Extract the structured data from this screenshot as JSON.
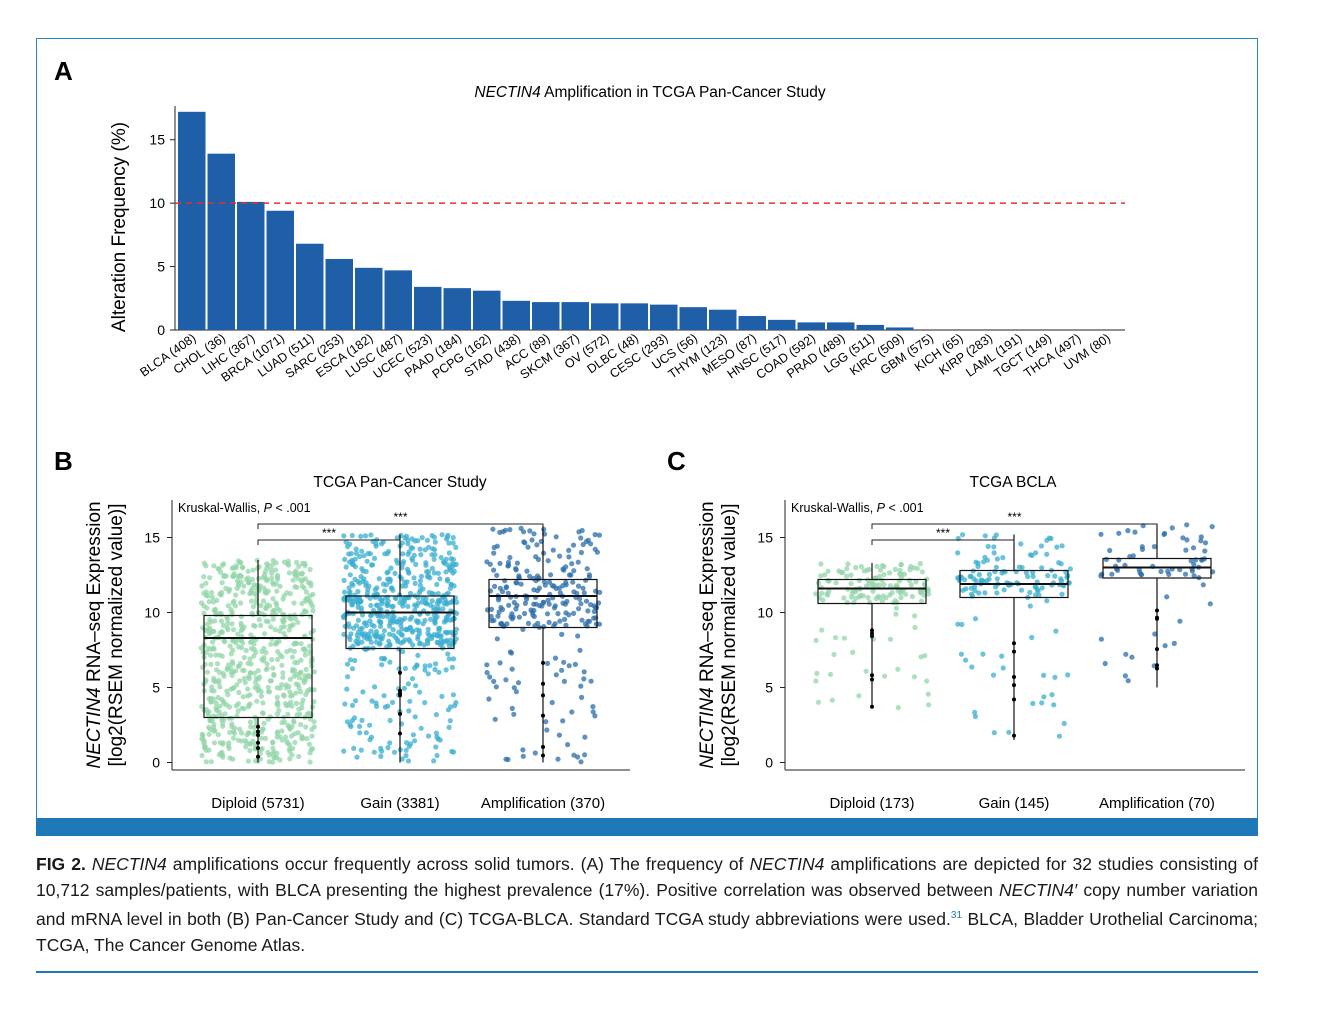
{
  "chart_data": [
    {
      "panel": "A",
      "type": "bar",
      "title_italic": "NECTIN4",
      "title_rest": " Amplification in TCGA Pan-Cancer Study",
      "ylabel": "Alteration Frequency (%)",
      "ylim": [
        0,
        17.5
      ],
      "yticks": [
        0,
        5,
        10,
        15
      ],
      "reference_line": 10,
      "bar_color": "#1f5fa8",
      "reference_color": "#e03030",
      "categories": [
        "BLCA (408)",
        "CHOL (36)",
        "LIHC (367)",
        "BRCA (1071)",
        "LUAD (511)",
        "SARC (253)",
        "ESCA (182)",
        "LUSC (487)",
        "UCEC (523)",
        "PAAD (184)",
        "PCPG (162)",
        "STAD (438)",
        "ACC (89)",
        "SKCM (367)",
        "OV (572)",
        "DLBC (48)",
        "CESC (293)",
        "UCS (56)",
        "THYM (123)",
        "MESO (87)",
        "HNSC (517)",
        "COAD (592)",
        "PRAD (489)",
        "LGG (511)",
        "KIRC (509)",
        "GBM (575)",
        "KICH (65)",
        "KIRP (283)",
        "LAML (191)",
        "TGCT (149)",
        "THCA (497)",
        "UVM (80)"
      ],
      "values": [
        17.2,
        13.9,
        10.1,
        9.4,
        6.8,
        5.6,
        4.9,
        4.7,
        3.4,
        3.3,
        3.1,
        2.3,
        2.2,
        2.2,
        2.1,
        2.1,
        2.0,
        1.8,
        1.6,
        1.1,
        0.8,
        0.6,
        0.6,
        0.4,
        0.2,
        0,
        0,
        0,
        0,
        0,
        0,
        0
      ]
    },
    {
      "panel": "B",
      "type": "box",
      "title": "TCGA Pan-Cancer Study",
      "ylabel_italic": "NECTIN4",
      "ylabel_line1_rest": " RNA–seq Expression",
      "ylabel_line2": "[log2(RSEM normalized value)]",
      "ylim": [
        -0.5,
        17.5
      ],
      "yticks": [
        0,
        5,
        10,
        15
      ],
      "stat_prefix": "Kruskal-Wallis, ",
      "stat_p": "P",
      "stat_value": " < .001",
      "brackets": [
        {
          "from": 0,
          "to": 1,
          "label": "***"
        },
        {
          "from": 0,
          "to": 2,
          "label": "***"
        }
      ],
      "categories": [
        "Diploid (5731)",
        "Gain (3381)",
        "Amplification (370)"
      ],
      "colors": [
        "#92d5a8",
        "#3aaed0",
        "#2a6eab"
      ],
      "boxes": [
        {
          "min": 0.0,
          "q1": 3.0,
          "median": 8.3,
          "q3": 9.8,
          "max": 13.5
        },
        {
          "min": 0.0,
          "q1": 7.6,
          "median": 10.0,
          "q3": 11.1,
          "max": 15.2
        },
        {
          "min": 0.0,
          "q1": 9.0,
          "median": 11.1,
          "q3": 12.2,
          "max": 15.8
        }
      ]
    },
    {
      "panel": "C",
      "type": "box",
      "title": "TCGA BCLA",
      "ylabel_italic": "NECTIN4",
      "ylabel_line1_rest": " RNA–seq Expression",
      "ylabel_line2": "[log2(RSEM normalized value)]",
      "ylim": [
        -0.5,
        17.5
      ],
      "yticks": [
        0,
        5,
        10,
        15
      ],
      "stat_prefix": "Kruskal-Wallis, ",
      "stat_p": "P",
      "stat_value": " < .001",
      "brackets": [
        {
          "from": 0,
          "to": 1,
          "label": "***"
        },
        {
          "from": 0,
          "to": 2,
          "label": "***"
        }
      ],
      "categories": [
        "Diploid (173)",
        "Gain (145)",
        "Amplification (70)"
      ],
      "colors": [
        "#92d5a8",
        "#3aaed0",
        "#2a6eab"
      ],
      "boxes": [
        {
          "min": 3.6,
          "q1": 10.6,
          "median": 11.6,
          "q3": 12.2,
          "max": 13.3
        },
        {
          "min": 1.5,
          "q1": 11.0,
          "median": 11.9,
          "q3": 12.8,
          "max": 15.2
        },
        {
          "min": 5.0,
          "q1": 12.3,
          "median": 13.0,
          "q3": 13.6,
          "max": 15.9
        }
      ]
    }
  ],
  "panel_labels": [
    "A",
    "B",
    "C"
  ],
  "caption": {
    "label": "FIG 2.",
    "parts": [
      {
        "t": " ",
        "i": false
      },
      {
        "t": "NECTIN4",
        "i": true
      },
      {
        "t": " amplifications occur frequently across solid tumors. (A) The frequency of ",
        "i": false
      },
      {
        "t": "NECTIN4",
        "i": true
      },
      {
        "t": " amplifications are depicted for 32 studies consisting of 10,712 samples/patients, with BLCA presenting the highest prevalence (17%). Positive correlation was observed between ",
        "i": false
      },
      {
        "t": "NECTIN4′",
        "i": true
      },
      {
        "t": " copy number variation and mRNA level in both (B) Pan-Cancer Study and (C) TCGA-BLCA. Standard TCGA study abbreviations were used.",
        "i": false
      }
    ],
    "ref_sup": "31",
    "tail": " BLCA, Bladder Urothelial Carcinoma; TCGA, The Cancer Genome Atlas."
  }
}
